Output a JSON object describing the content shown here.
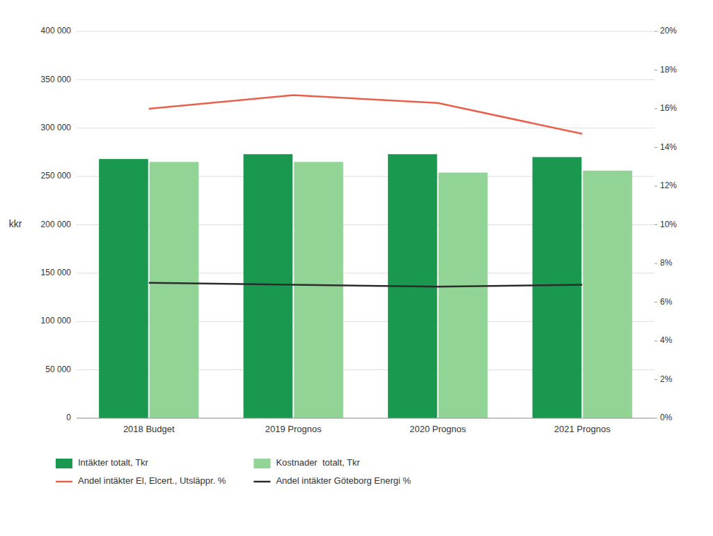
{
  "chart_data": {
    "type": "bar",
    "categories": [
      "2018 Budget",
      "2019 Prognos",
      "2020 Prognos",
      "2021 Prognos"
    ],
    "ylabel": "kkr",
    "ylim": [
      0,
      400000
    ],
    "yticks": [
      0,
      {
        "value": 50000,
        "label": "50 000"
      },
      {
        "value": 100000,
        "label": "100 000"
      },
      {
        "value": 150000,
        "label": "150 000"
      },
      {
        "value": 200000,
        "label": "200 000"
      },
      {
        "value": 250000,
        "label": "250 000"
      },
      {
        "value": 300000,
        "label": "300 000"
      },
      {
        "value": 350000,
        "label": "350 000"
      },
      {
        "value": 400000,
        "label": "400 000"
      }
    ],
    "y2lim": [
      0,
      0.2
    ],
    "y2ticks": [
      {
        "value": 0.0,
        "label": "0%"
      },
      {
        "value": 0.02,
        "label": "2%"
      },
      {
        "value": 0.04,
        "label": "4%"
      },
      {
        "value": 0.06,
        "label": "6%"
      },
      {
        "value": 0.08,
        "label": "8%"
      },
      {
        "value": 0.1,
        "label": "10%"
      },
      {
        "value": 0.12,
        "label": "12%"
      },
      {
        "value": 0.14,
        "label": "14%"
      },
      {
        "value": 0.16,
        "label": "16%"
      },
      {
        "value": 0.18,
        "label": "18%"
      },
      {
        "value": 0.2,
        "label": "20%"
      }
    ],
    "grid": true,
    "legend": "bottom",
    "series": [
      {
        "name": "Intäkter totalt, Tkr",
        "type": "bar",
        "color": "#1a9850",
        "values": [
          268000,
          273000,
          273000,
          270000
        ]
      },
      {
        "name": "Kostnader  totalt, Tkr",
        "type": "bar",
        "color": "#92d495",
        "values": [
          265000,
          265000,
          254000,
          256000
        ]
      },
      {
        "name": "Andel intäkter El, Elcert., Utsläppr. %",
        "type": "line",
        "axis": "y2",
        "color": "#e8604c",
        "values": [
          0.16,
          0.167,
          0.163,
          0.147
        ]
      },
      {
        "name": "Andel intäkter Göteborg Energi %",
        "type": "line",
        "axis": "y2",
        "color": "#2c2c2c",
        "values": [
          0.07,
          0.069,
          0.068,
          0.069
        ]
      }
    ]
  }
}
